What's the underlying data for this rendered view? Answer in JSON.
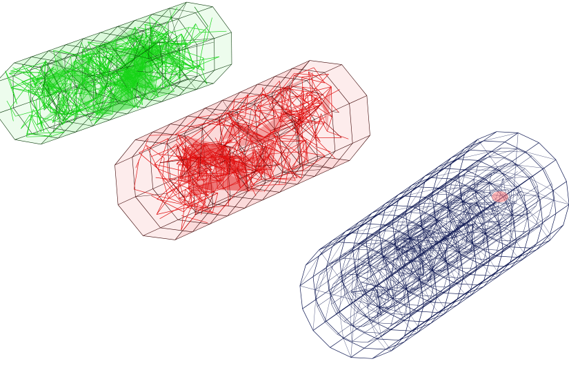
{
  "scene": {
    "background": "#ffffff",
    "meshes": [
      {
        "name": "green-mesh",
        "stroke": "#0a3a0a",
        "fill": "#16d416",
        "fill_alpha": 0.8,
        "shape": "prism",
        "density": "dense"
      },
      {
        "name": "red-mesh",
        "stroke": "#3a0000",
        "fill": "#e01010",
        "fill_alpha": 0.75,
        "shape": "prism",
        "density": "dense"
      },
      {
        "name": "blue-mesh",
        "stroke": "#0a1450",
        "fill": "none",
        "shape": "cylinder",
        "density": "regular",
        "highlight": "#ff8080"
      }
    ]
  }
}
